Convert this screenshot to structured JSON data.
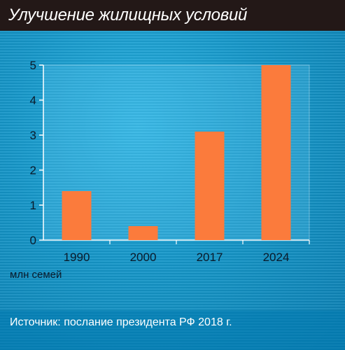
{
  "header": {
    "title": "Улучшение жилищных условий"
  },
  "unit_label": "млн семей",
  "source": "Источник: послание президента РФ 2018 г.",
  "colors": {
    "bar": "#fb7b3c",
    "header_bg": "#231817",
    "background": "#1596c8"
  },
  "chart_data": {
    "type": "bar",
    "title": "Улучшение жилищных условий",
    "categories": [
      "1990",
      "2000",
      "2017",
      "2024"
    ],
    "values": [
      1.4,
      0.4,
      3.1,
      5.0
    ],
    "xlabel": "",
    "ylabel": "млн семей",
    "ylim": [
      0,
      5
    ],
    "yticks": [
      "0",
      "1",
      "2",
      "3",
      "4",
      "5"
    ],
    "grid": false,
    "legend": "none"
  }
}
